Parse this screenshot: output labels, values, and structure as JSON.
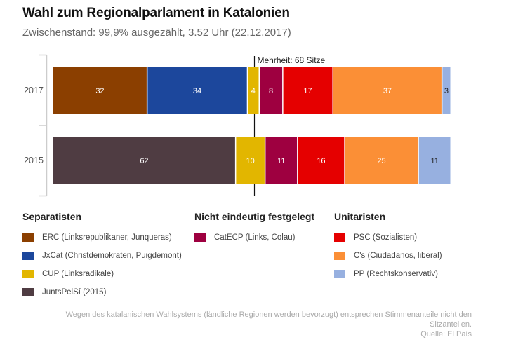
{
  "header": {
    "title": "Wahl zum Regionalparlament in Katalonien",
    "subtitle": "Zwischenstand: 99,9% ausgezählt, 3.52 Uhr (22.12.2017)"
  },
  "chart_data": {
    "type": "bar",
    "orientation": "horizontal-stacked",
    "title": "Wahl zum Regionalparlament in Katalonien",
    "subtitle": "Zwischenstand: 99,9% ausgezählt, 3.52 Uhr (22.12.2017)",
    "total_seats": 135,
    "xlim": [
      0,
      135
    ],
    "categories": [
      "2017",
      "2015"
    ],
    "annotation": {
      "label": "Mehrheit: 68 Sitze",
      "value": 68
    },
    "parties": {
      "ERC": {
        "color": "#8b3f00",
        "label_color": "#ffffff"
      },
      "JxCat": {
        "color": "#1c479c",
        "label_color": "#ffffff"
      },
      "CUP": {
        "color": "#e2b600",
        "label_color": "#ffffff"
      },
      "JuntsPelSi": {
        "color": "#4f3c42",
        "label_color": "#ffffff"
      },
      "CatECP": {
        "color": "#9e0040",
        "label_color": "#ffffff"
      },
      "PSC": {
        "color": "#e50000",
        "label_color": "#ffffff"
      },
      "Cs": {
        "color": "#fb8f36",
        "label_color": "#ffffff"
      },
      "PP": {
        "color": "#97b0e0",
        "label_color": "#222222"
      }
    },
    "rows": [
      {
        "year": "2017",
        "segments": [
          {
            "party": "ERC",
            "value": 32
          },
          {
            "party": "JxCat",
            "value": 34
          },
          {
            "party": "CUP",
            "value": 4
          },
          {
            "party": "CatECP",
            "value": 8
          },
          {
            "party": "PSC",
            "value": 17
          },
          {
            "party": "Cs",
            "value": 37
          },
          {
            "party": "PP",
            "value": 3
          }
        ]
      },
      {
        "year": "2015",
        "segments": [
          {
            "party": "JuntsPelSi",
            "value": 62
          },
          {
            "party": "CUP",
            "value": 10
          },
          {
            "party": "CatECP",
            "value": 11
          },
          {
            "party": "PSC",
            "value": 16
          },
          {
            "party": "Cs",
            "value": 25
          },
          {
            "party": "PP",
            "value": 11
          }
        ]
      }
    ],
    "legend": [
      {
        "title": "Separatisten",
        "items": [
          {
            "party": "ERC",
            "label": "ERC (Linksrepublikaner, Junqueras)",
            "color": "#8b3f00"
          },
          {
            "party": "JxCat",
            "label": "JxCat (Christdemokraten, Puigdemont)",
            "color": "#1c479c"
          },
          {
            "party": "CUP",
            "label": "CUP (Linksradikale)",
            "color": "#e2b600"
          },
          {
            "party": "JuntsPelSi",
            "label": "JuntsPelSí (2015)",
            "color": "#4f3c42"
          }
        ]
      },
      {
        "title": "Nicht eindeutig festgelegt",
        "items": [
          {
            "party": "CatECP",
            "label": "CatECP (Links, Colau)",
            "color": "#9e0040"
          }
        ]
      },
      {
        "title": "Unitaristen",
        "items": [
          {
            "party": "PSC",
            "label": "PSC (Sozialisten)",
            "color": "#e50000"
          },
          {
            "party": "Cs",
            "label": "C's (Ciudadanos, liberal)",
            "color": "#fb8f36"
          },
          {
            "party": "PP",
            "label": "PP (Rechtskonservativ)",
            "color": "#97b0e0"
          }
        ]
      }
    ]
  },
  "footer": {
    "note_line1": "Wegen des katalanischen Wahlsystems (ländliche Regionen werden bevorzugt) entsprechen Stimmenanteile nicht den",
    "note_line2": "Sitzanteilen.",
    "source": "Quelle: El País"
  }
}
